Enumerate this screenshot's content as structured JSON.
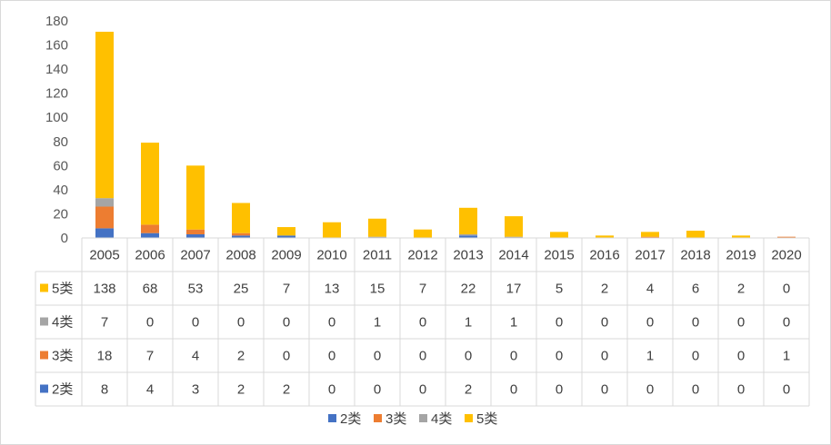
{
  "chart_data": {
    "type": "bar",
    "stacked": true,
    "categories": [
      "2005",
      "2006",
      "2007",
      "2008",
      "2009",
      "2010",
      "2011",
      "2012",
      "2013",
      "2014",
      "2015",
      "2016",
      "2017",
      "2018",
      "2019",
      "2020"
    ],
    "series": [
      {
        "name": "2类",
        "color": "#4472c4",
        "values": [
          8,
          4,
          3,
          2,
          2,
          0,
          0,
          0,
          2,
          0,
          0,
          0,
          0,
          0,
          0,
          0
        ]
      },
      {
        "name": "3类",
        "color": "#ed7d31",
        "values": [
          18,
          7,
          4,
          2,
          0,
          0,
          0,
          0,
          0,
          0,
          0,
          0,
          1,
          0,
          0,
          1
        ]
      },
      {
        "name": "4类",
        "color": "#a5a5a5",
        "values": [
          7,
          0,
          0,
          0,
          0,
          0,
          1,
          0,
          1,
          1,
          0,
          0,
          0,
          0,
          0,
          0
        ]
      },
      {
        "name": "5类",
        "color": "#ffc000",
        "values": [
          138,
          68,
          53,
          25,
          7,
          13,
          15,
          7,
          22,
          17,
          5,
          2,
          4,
          6,
          2,
          0
        ]
      }
    ],
    "yticks": [
      "0",
      "20",
      "40",
      "60",
      "80",
      "100",
      "120",
      "140",
      "160",
      "180"
    ],
    "ylim": [
      0,
      180
    ],
    "data_table": true,
    "data_table_row_order": [
      "5类",
      "4类",
      "3类",
      "2类"
    ],
    "legend_position": "bottom",
    "grid": false
  }
}
